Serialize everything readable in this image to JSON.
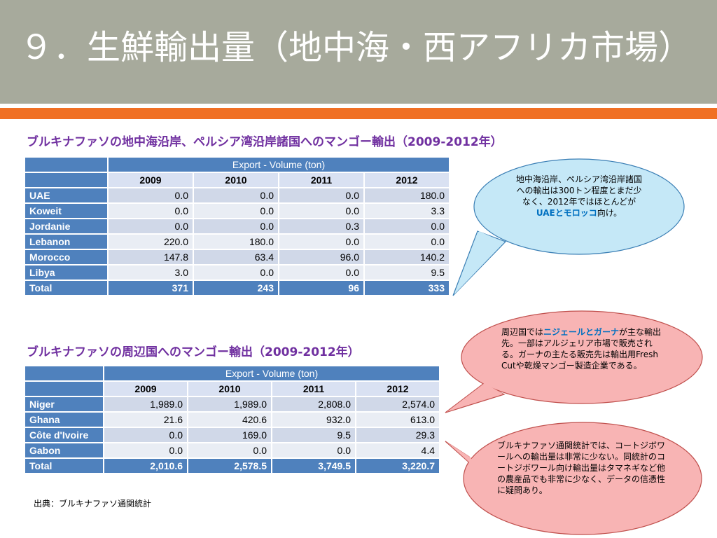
{
  "title": "９．生鮮輸出量（地中海・西アフリカ市場）",
  "section1": {
    "title": "ブルキナファソの地中海沿岸、ペルシア湾沿岸諸国へのマンゴー輸出（2009-2012年）",
    "header": "Export - Volume (ton)",
    "years": [
      "2009",
      "2010",
      "2011",
      "2012"
    ],
    "rows": [
      {
        "name": "UAE",
        "values": [
          "0.0",
          "0.0",
          "0.0",
          "180.0"
        ]
      },
      {
        "name": "Koweit",
        "values": [
          "0.0",
          "0.0",
          "0.0",
          "3.3"
        ]
      },
      {
        "name": "Jordanie",
        "values": [
          "0.0",
          "0.0",
          "0.3",
          "0.0"
        ]
      },
      {
        "name": "Lebanon",
        "values": [
          "220.0",
          "180.0",
          "0.0",
          "0.0"
        ]
      },
      {
        "name": "Morocco",
        "values": [
          "147.8",
          "63.4",
          "96.0",
          "140.2"
        ]
      },
      {
        "name": "Libya",
        "values": [
          "3.0",
          "0.0",
          "0.0",
          "9.5"
        ]
      }
    ],
    "total": {
      "name": "Total",
      "values": [
        "371",
        "243",
        "96",
        "333"
      ]
    }
  },
  "section2": {
    "title": "ブルキナファソの周辺国へのマンゴー輸出（2009-2012年）",
    "header": "Export - Volume (ton)",
    "years": [
      "2009",
      "2010",
      "2011",
      "2012"
    ],
    "rows": [
      {
        "name": "Niger",
        "values": [
          "1,989.0",
          "1,989.0",
          "2,808.0",
          "2,574.0"
        ]
      },
      {
        "name": "Ghana",
        "values": [
          "21.6",
          "420.6",
          "932.0",
          "613.0"
        ]
      },
      {
        "name": "Côte d'Ivoire",
        "values": [
          "0.0",
          "169.0",
          "9.5",
          "29.3"
        ]
      },
      {
        "name": "Gabon",
        "values": [
          "0.0",
          "0.0",
          "0.0",
          "4.4"
        ]
      }
    ],
    "total": {
      "name": "Total",
      "values": [
        "2,010.6",
        "2,578.5",
        "3,749.5",
        "3,220.7"
      ]
    }
  },
  "bubble1": {
    "pre": "地中海沿岸、ペルシア湾沿岸諸国への輸出は300トン程度とまだ少なく、2012年ではほとんどが",
    "hl": "UAEとモロッコ",
    "post": "向け。"
  },
  "bubble2": {
    "pre": "周辺国では",
    "hl": "ニジェールとガーナ",
    "post": "が主な輸出先。一部はアルジェリア市場で販売される。ガーナの主たる販売先は輸出用Fresh Cutや乾燥マンゴー製造企業である。"
  },
  "bubble3": {
    "text": "ブルキナファソ通関統計では、コートジボワールへの輸出量は非常に少ない。同統計のコートジボワール向け輸出量はタマネギなど他の農産品でも非常に少なく、データの信憑性に疑問あり。"
  },
  "source": "出典：ブルキナファソ通関統計",
  "colors": {
    "title_bar": "#a7aa9c",
    "accent_stripe": "#f07024",
    "section_title": "#7030a0",
    "table_header": "#4f81bd",
    "bubble_blue": "#c5e8f7",
    "bubble_red": "#f8b4b4",
    "highlight": "#0070c0"
  }
}
